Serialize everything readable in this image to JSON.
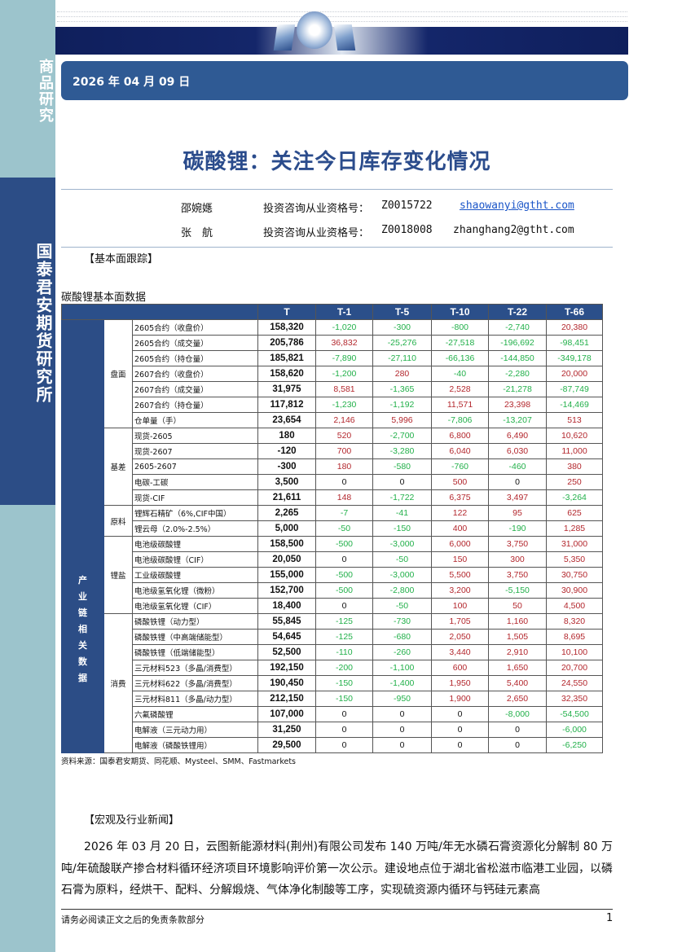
{
  "sidebar": {
    "top_label": "商品研究",
    "org_label": "国泰君安期货研究所"
  },
  "header": {
    "date": "2026 年 04 月 09 日"
  },
  "title": "碳酸锂：关注今日库存变化情况",
  "authors": [
    {
      "name": "邵婉嫕",
      "cert_label": "投资咨询从业资格号：",
      "cert": "Z0015722",
      "email": "shaowanyi@gtht.com",
      "email_is_link": true
    },
    {
      "name": "张　航",
      "cert_label": "投资咨询从业资格号：",
      "cert": "Z0018008",
      "email": "zhanghang2@gtht.com",
      "email_is_link": false
    }
  ],
  "section1": "【基本面跟踪】",
  "table_title": "碳酸锂基本面数据",
  "table": {
    "columns": [
      "T",
      "T-1",
      "T-5",
      "T-10",
      "T-22",
      "T-66"
    ],
    "outer_groups": [
      {
        "label": "",
        "rows": 12
      },
      {
        "label": "产业链相关数据",
        "rows": 16
      }
    ],
    "groups": [
      {
        "label": "盘面",
        "rows": [
          [
            "2605合约（收盘价）",
            "158,320",
            "-1,020",
            "-300",
            "-800",
            "-2,740",
            "20,380"
          ],
          [
            "2605合约（成交量）",
            "205,786",
            "36,832",
            "-25,276",
            "-27,518",
            "-196,692",
            "-98,451"
          ],
          [
            "2605合约（持仓量）",
            "185,821",
            "-7,890",
            "-27,110",
            "-66,136",
            "-144,850",
            "-349,178"
          ],
          [
            "2607合约（收盘价）",
            "158,620",
            "-1,200",
            "280",
            "-40",
            "-2,280",
            "20,000"
          ],
          [
            "2607合约（成交量）",
            "31,975",
            "8,581",
            "-1,365",
            "2,528",
            "-21,278",
            "-87,749"
          ],
          [
            "2607合约（持仓量）",
            "117,812",
            "-1,230",
            "-1,192",
            "11,571",
            "23,398",
            "-14,469"
          ],
          [
            "仓单量（手）",
            "23,654",
            "2,146",
            "5,996",
            "-7,806",
            "-13,207",
            "513"
          ]
        ]
      },
      {
        "label": "基差",
        "rows": [
          [
            "现货-2605",
            "180",
            "520",
            "-2,700",
            "6,800",
            "6,490",
            "10,620"
          ],
          [
            "现货-2607",
            "-120",
            "700",
            "-3,280",
            "6,040",
            "6,030",
            "11,000"
          ],
          [
            "2605-2607",
            "-300",
            "180",
            "-580",
            "-760",
            "-460",
            "380"
          ],
          [
            "电碳-工碳",
            "3,500",
            "0",
            "0",
            "500",
            "0",
            "250"
          ],
          [
            "现货-CIF",
            "21,611",
            "148",
            "-1,722",
            "6,375",
            "3,497",
            "-3,264"
          ]
        ]
      },
      {
        "label": "原料",
        "rows": [
          [
            "锂辉石精矿（6%,CIF中国）",
            "2,265",
            "-7",
            "-41",
            "122",
            "95",
            "625"
          ],
          [
            "锂云母（2.0%-2.5%）",
            "5,000",
            "-50",
            "-150",
            "400",
            "-190",
            "1,285"
          ]
        ]
      },
      {
        "label": "锂盐",
        "rows": [
          [
            "电池级碳酸锂",
            "158,500",
            "-500",
            "-3,000",
            "6,000",
            "3,750",
            "31,000"
          ],
          [
            "电池级碳酸锂（CIF）",
            "20,050",
            "0",
            "-50",
            "150",
            "300",
            "5,350"
          ],
          [
            "工业级碳酸锂",
            "155,000",
            "-500",
            "-3,000",
            "5,500",
            "3,750",
            "30,750"
          ],
          [
            "电池级氢氧化锂（微粉）",
            "152,700",
            "-500",
            "-2,800",
            "3,200",
            "-5,150",
            "30,900"
          ],
          [
            "电池级氢氧化锂（CIF）",
            "18,400",
            "0",
            "-50",
            "100",
            "50",
            "4,500"
          ]
        ]
      },
      {
        "label": "消费",
        "rows": [
          [
            "磷酸铁锂（动力型）",
            "55,845",
            "-125",
            "-730",
            "1,705",
            "1,160",
            "8,320"
          ],
          [
            "磷酸铁锂（中高端储能型）",
            "54,645",
            "-125",
            "-680",
            "2,050",
            "1,505",
            "8,695"
          ],
          [
            "磷酸铁锂（低端储能型）",
            "52,500",
            "-110",
            "-260",
            "3,440",
            "2,910",
            "10,100"
          ],
          [
            "三元材料523（多晶/消费型）",
            "192,150",
            "-200",
            "-1,100",
            "600",
            "1,650",
            "20,700"
          ],
          [
            "三元材料622（多晶/消费型）",
            "190,450",
            "-150",
            "-1,400",
            "1,950",
            "5,400",
            "24,550"
          ],
          [
            "三元材料811（多晶/动力型）",
            "212,150",
            "-150",
            "-950",
            "1,900",
            "2,650",
            "32,350"
          ],
          [
            "六氟磷酸锂",
            "107,000",
            "0",
            "0",
            "0",
            "-8,000",
            "-54,500"
          ],
          [
            "电解液（三元动力用）",
            "31,250",
            "0",
            "0",
            "0",
            "0",
            "-6,000"
          ],
          [
            "电解液（磷酸铁锂用）",
            "29,500",
            "0",
            "0",
            "0",
            "0",
            "-6,250"
          ]
        ]
      }
    ],
    "colors": {
      "positive": "#b3272d",
      "negative": "#22b04a",
      "header": "#2b4f8a"
    }
  },
  "source": "资料来源：国泰君安期货、同花顺、Mysteel、SMM、Fastmarkets",
  "section2": "【宏观及行业新闻】",
  "paragraph": "2026 年 03 月 20 日，云图新能源材料(荆州)有限公司发布 140 万吨/年无水磷石膏资源化分解制 80 万吨/年硫酸联产掺合材料循环经济项目环境影响评价第一次公示。建设地点位于湖北省松滋市临港工业园，以磷石膏为原料，经烘干、配料、分解煅烧、气体净化制酸等工序，实现硫资源内循环与钙硅元素高",
  "footer": {
    "disclaimer": "请务必阅读正文之后的免责条款部分",
    "page": "1"
  }
}
